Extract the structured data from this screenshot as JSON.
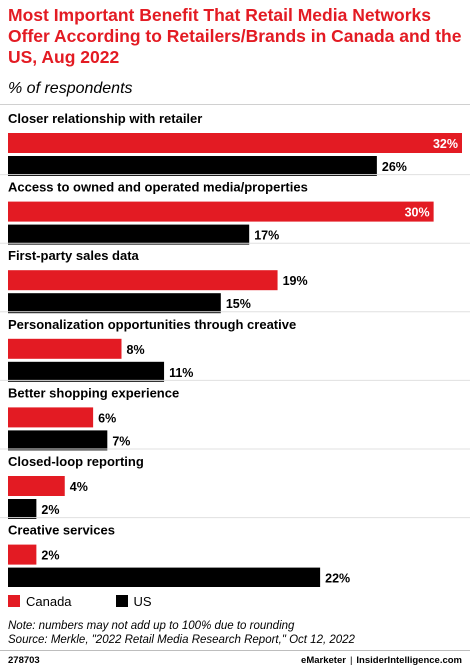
{
  "title": "Most Important Benefit That Retail Media Networks Offer According to Retailers/Brands in Canada and the US, Aug 2022",
  "subtitle": "% of respondents",
  "colors": {
    "canada": "#e31b23",
    "us": "#000000",
    "title": "#e31b23"
  },
  "legend": [
    {
      "label": "Canada",
      "color": "#e31b23"
    },
    {
      "label": "US",
      "color": "#000000"
    }
  ],
  "note": "Note: numbers may not add up to 100% due to rounding",
  "source": "Source: Merkle, \"2022 Retail Media Research Report,\" Oct 12, 2022",
  "footer": {
    "id": "278703",
    "brand_left": "eMarketer",
    "separator": "|",
    "brand_right": "InsiderIntelligence.com"
  },
  "chart_data": {
    "type": "bar",
    "orientation": "horizontal",
    "unit": "%",
    "xlim": [
      0,
      32
    ],
    "categories": [
      "Closer relationship with retailer",
      "Access to owned and operated media/properties",
      "First-party sales data",
      "Personalization opportunities through creative",
      "Better shopping experience",
      "Closed-loop reporting",
      "Creative services"
    ],
    "series": [
      {
        "name": "Canada",
        "color": "#e31b23",
        "values": [
          32,
          30,
          19,
          8,
          6,
          4,
          2
        ]
      },
      {
        "name": "US",
        "color": "#000000",
        "values": [
          26,
          17,
          15,
          11,
          7,
          2,
          22
        ]
      }
    ],
    "data_labels": [
      [
        "32%",
        "30%",
        "19%",
        "8%",
        "6%",
        "4%",
        "2%"
      ],
      [
        "26%",
        "17%",
        "15%",
        "11%",
        "7%",
        "2%",
        "22%"
      ]
    ]
  }
}
